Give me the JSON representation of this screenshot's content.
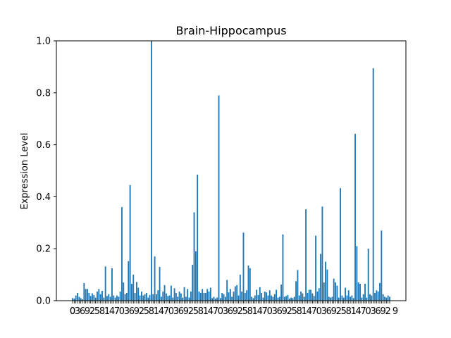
{
  "chart_data": {
    "type": "bar",
    "title": "Brain-Hippocampus",
    "xlabel": "",
    "ylabel": "Expression Level",
    "ylim": [
      0,
      1.0
    ],
    "yticks": [
      "0.0",
      "0.2",
      "0.4",
      "0.6",
      "0.8",
      "1.0"
    ],
    "ytick_values": [
      0,
      0.2,
      0.4,
      0.6,
      0.8,
      1.0
    ],
    "xtick_label_start": "0",
    "xtick_label_end": "9",
    "bar_color": "#1f77b4",
    "grid": false,
    "values": [
      0.01,
      0.008,
      0.02,
      0.03,
      0.015,
      0.01,
      0.005,
      0.068,
      0.045,
      0.045,
      0.03,
      0.018,
      0.028,
      0.022,
      0.012,
      0.035,
      0.045,
      0.025,
      0.038,
      0.012,
      0.132,
      0.018,
      0.025,
      0.015,
      0.125,
      0.02,
      0.012,
      0.02,
      0.015,
      0.035,
      0.36,
      0.07,
      0.025,
      0.03,
      0.152,
      0.445,
      0.065,
      0.1,
      0.03,
      0.072,
      0.05,
      0.02,
      0.035,
      0.02,
      0.025,
      0.03,
      0.012,
      0.022,
      1.0,
      0.025,
      0.17,
      0.025,
      0.04,
      0.13,
      0.015,
      0.035,
      0.06,
      0.028,
      0.018,
      0.02,
      0.058,
      0.012,
      0.048,
      0.03,
      0.015,
      0.035,
      0.028,
      0.012,
      0.052,
      0.015,
      0.045,
      0.012,
      0.035,
      0.138,
      0.34,
      0.19,
      0.485,
      0.035,
      0.03,
      0.045,
      0.03,
      0.03,
      0.045,
      0.035,
      0.05,
      0.01,
      0.015,
      0.008,
      0.012,
      0.79,
      0.01,
      0.03,
      0.025,
      0.015,
      0.08,
      0.032,
      0.045,
      0.015,
      0.035,
      0.055,
      0.06,
      0.02,
      0.1,
      0.035,
      0.262,
      0.03,
      0.04,
      0.135,
      0.125,
      0.015,
      0.01,
      0.02,
      0.042,
      0.022,
      0.052,
      0.03,
      0.012,
      0.035,
      0.032,
      0.02,
      0.04,
      0.02,
      0.015,
      0.025,
      0.042,
      0.012,
      0.015,
      0.062,
      0.255,
      0.015,
      0.018,
      0.022,
      0.008,
      0.012,
      0.01,
      0.015,
      0.075,
      0.118,
      0.02,
      0.035,
      0.028,
      0.015,
      0.352,
      0.03,
      0.042,
      0.042,
      0.028,
      0.018,
      0.25,
      0.035,
      0.048,
      0.18,
      0.362,
      0.07,
      0.15,
      0.12,
      0.015,
      0.012,
      0.015,
      0.085,
      0.07,
      0.058,
      0.012,
      0.433,
      0.02,
      0.012,
      0.05,
      0.02,
      0.04,
      0.015,
      0.02,
      0.01,
      0.642,
      0.21,
      0.07,
      0.065,
      0.012,
      0.025,
      0.065,
      0.012,
      0.2,
      0.025,
      0.02,
      0.895,
      0.03,
      0.04,
      0.035,
      0.068,
      0.27,
      0.025,
      0.015,
      0.012,
      0.02,
      0.015
    ]
  }
}
